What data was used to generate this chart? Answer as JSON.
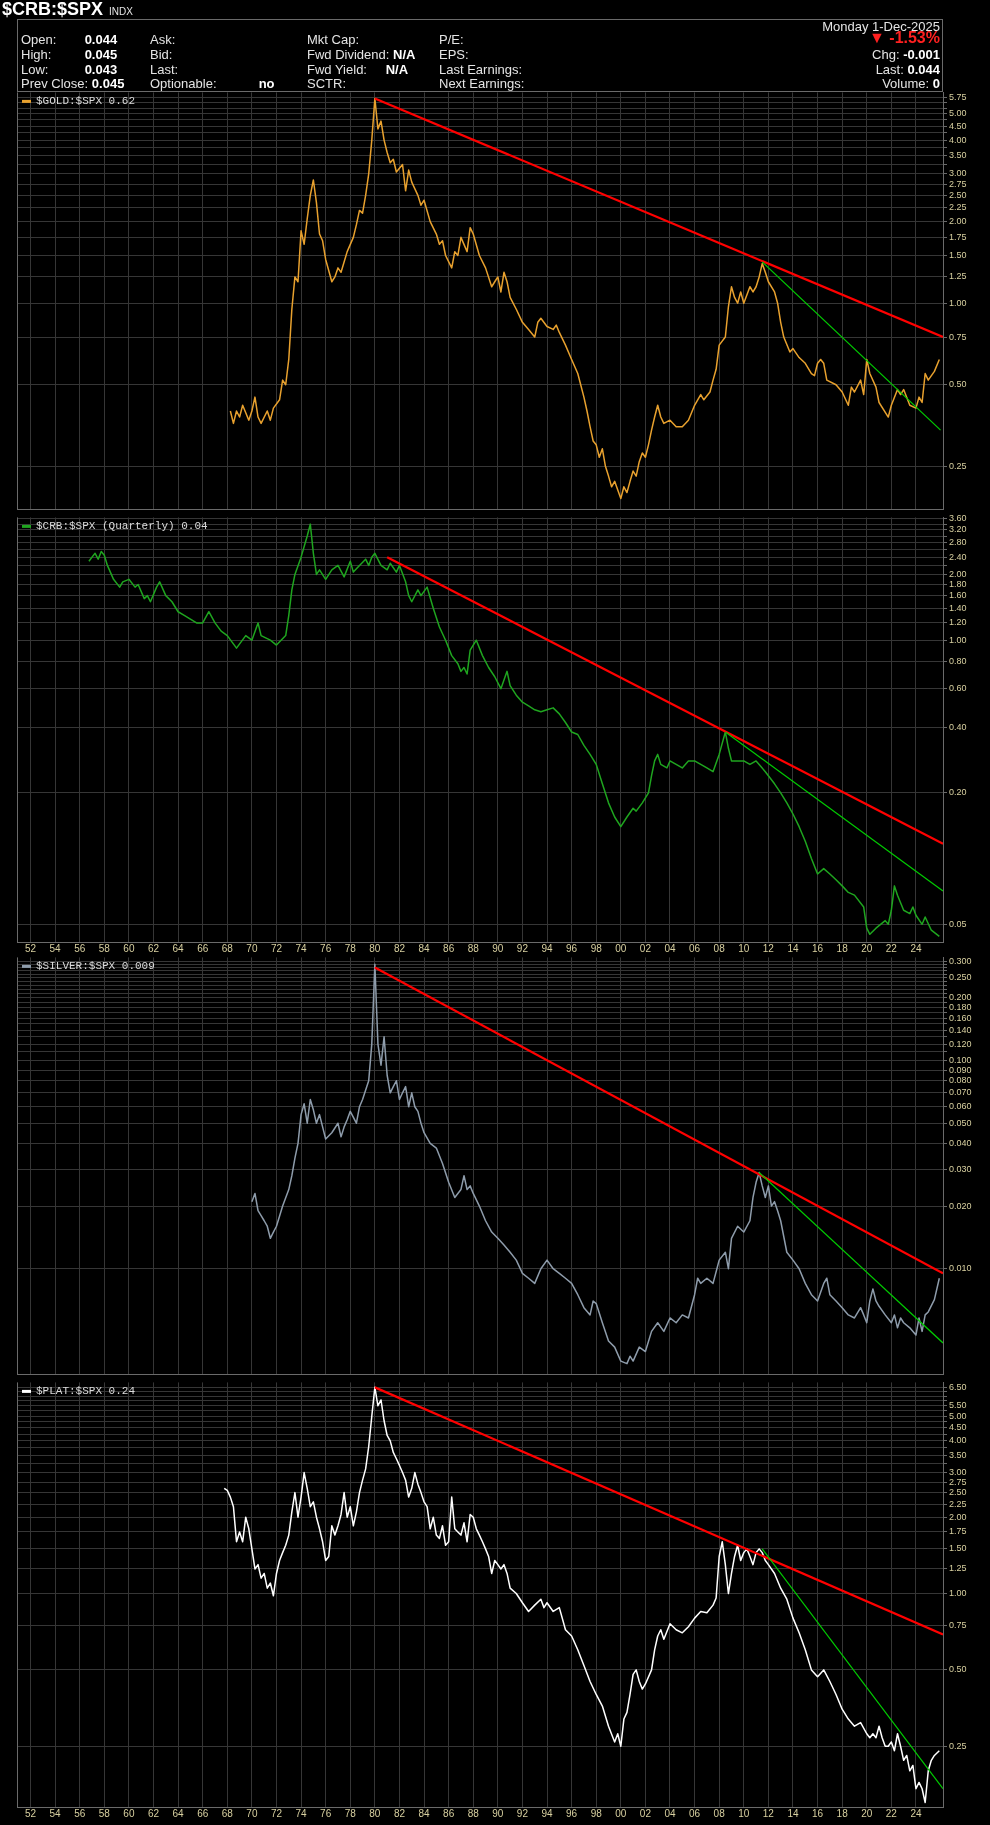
{
  "chart_data": [
    {
      "type": "other",
      "title": "$CRB:$SPX",
      "subtitle": "INDX",
      "annotations": [
        "Monday 1-Dec-2025",
        "Open: 0.044",
        "High: 0.045",
        "Low: 0.043",
        "Prev Close: 0.045",
        "Ask:",
        "Bid:",
        "Last:",
        "Optionable: no",
        "Mkt Cap:",
        "Fwd Dividend: N/A",
        "Fwd Yield: N/A",
        "SCTR:",
        "P/E:",
        "EPS:",
        "Last Earnings:",
        "Next Earnings:",
        "▼ -1.53%",
        "Chg: -0.001",
        "Last: 0.044",
        "Volume: 0"
      ]
    },
    {
      "type": "line",
      "log": "y",
      "grid": true,
      "legend": "top left",
      "tick_labels": "y",
      "x": [
        1968.25,
        1968.5,
        1968.75,
        1969,
        1969.25,
        1969.75,
        1970,
        1970.25,
        1970.5,
        1970.75,
        1971.25,
        1971.5,
        1971.75,
        1972.25,
        1972.5,
        1972.75,
        1973,
        1973.25,
        1973.5,
        1973.75,
        1974,
        1974.25,
        1974.5,
        1974.75,
        1975,
        1975.25,
        1975.5,
        1975.75,
        1976,
        1976.5,
        1976.75,
        1977,
        1977.25,
        1977.75,
        1978.25,
        1978.5,
        1978.75,
        1979,
        1979.25,
        1979.5,
        1979.75,
        1980,
        1980.25,
        1980.5,
        1980.75,
        1981,
        1981.25,
        1981.5,
        1981.75,
        1982.25,
        1982.5,
        1982.75,
        1983,
        1983.5,
        1983.75,
        1984,
        1984.5,
        1985,
        1985.25,
        1985.5,
        1985.75,
        1986.25,
        1986.5,
        1986.75,
        1987,
        1987.5,
        1987.75,
        1988,
        1988.5,
        1989,
        1989.5,
        1989.75,
        1990,
        1990.25,
        1990.5,
        1990.75,
        1991,
        1991.5,
        1992,
        1992.5,
        1993,
        1993.25,
        1993.5,
        1994,
        1994.5,
        1994.75,
        1995,
        1995.5,
        1996,
        1996.5,
        1997,
        1997.25,
        1997.5,
        1997.75,
        1998,
        1998.25,
        1998.5,
        1998.75,
        1999,
        1999.25,
        1999.5,
        2000,
        2000.25,
        2000.5,
        2000.75,
        2001,
        2001.25,
        2001.5,
        2001.75,
        2002,
        2002.25,
        2002.5,
        2002.75,
        2003,
        2003.25,
        2003.5,
        2004,
        2004.5,
        2005,
        2005.5,
        2006,
        2006.5,
        2006.75,
        2007.25,
        2007.5,
        2007.75,
        2008,
        2008.5,
        2008.75,
        2009,
        2009.25,
        2009.5,
        2009.75,
        2010,
        2010.5,
        2010.75,
        2011,
        2011.25,
        2011.5,
        2011.75,
        2012,
        2012.5,
        2012.75,
        2013,
        2013.25,
        2013.75,
        2014,
        2014.5,
        2015,
        2015.5,
        2015.75,
        2016,
        2016.25,
        2016.5,
        2016.75,
        2017.5,
        2018,
        2018.5,
        2018.75,
        2019,
        2019.5,
        2019.75,
        2020,
        2020.25,
        2020.75,
        2021,
        2021.75,
        2022,
        2022.5,
        2022.75,
        2023,
        2023.5,
        2024,
        2024.25,
        2024.5,
        2024.75,
        2025,
        2025.5,
        2025.9
      ],
      "series": [
        {
          "name": "$GOLD:$SPX 0.62",
          "color": "#e8a12e",
          "values": [
            0.4,
            0.36,
            0.4,
            0.38,
            0.42,
            0.37,
            0.4,
            0.45,
            0.38,
            0.36,
            0.4,
            0.37,
            0.41,
            0.44,
            0.52,
            0.5,
            0.62,
            0.95,
            1.25,
            1.2,
            1.85,
            1.65,
            2.05,
            2.5,
            2.85,
            2.35,
            1.8,
            1.7,
            1.45,
            1.2,
            1.25,
            1.35,
            1.3,
            1.55,
            1.75,
            1.95,
            2.2,
            2.15,
            2.5,
            3.0,
            4.0,
            5.7,
            4.4,
            4.7,
            4.0,
            3.6,
            3.3,
            3.4,
            3.05,
            3.25,
            2.6,
            3.1,
            2.8,
            2.5,
            2.3,
            2.4,
            2.0,
            1.8,
            1.65,
            1.7,
            1.5,
            1.35,
            1.55,
            1.5,
            1.75,
            1.55,
            1.9,
            1.8,
            1.5,
            1.35,
            1.15,
            1.2,
            1.25,
            1.1,
            1.3,
            1.2,
            1.05,
            0.95,
            0.85,
            0.8,
            0.75,
            0.85,
            0.88,
            0.82,
            0.8,
            0.83,
            0.78,
            0.7,
            0.62,
            0.55,
            0.45,
            0.4,
            0.35,
            0.31,
            0.3,
            0.27,
            0.29,
            0.25,
            0.23,
            0.21,
            0.22,
            0.19,
            0.21,
            0.2,
            0.22,
            0.24,
            0.23,
            0.26,
            0.28,
            0.27,
            0.3,
            0.34,
            0.38,
            0.42,
            0.38,
            0.36,
            0.37,
            0.35,
            0.35,
            0.37,
            0.42,
            0.46,
            0.44,
            0.47,
            0.52,
            0.57,
            0.7,
            0.75,
            0.97,
            1.15,
            1.05,
            1.0,
            1.1,
            1.0,
            1.15,
            1.1,
            1.15,
            1.25,
            1.4,
            1.3,
            1.2,
            1.1,
            1.0,
            0.85,
            0.75,
            0.66,
            0.68,
            0.63,
            0.6,
            0.55,
            0.54,
            0.6,
            0.62,
            0.6,
            0.52,
            0.5,
            0.47,
            0.42,
            0.49,
            0.47,
            0.52,
            0.46,
            0.62,
            0.55,
            0.49,
            0.43,
            0.38,
            0.42,
            0.48,
            0.46,
            0.48,
            0.42,
            0.41,
            0.45,
            0.43,
            0.55,
            0.52,
            0.56,
            0.62
          ]
        },
        {
          "color": "#ff0000",
          "x": [
            1980,
            2026.2
          ],
          "values": [
            5.7,
            0.75
          ]
        },
        {
          "color": "#00cc00",
          "x": [
            2011.5,
            2026.0
          ],
          "values": [
            1.42,
            0.34
          ]
        }
      ],
      "xlim": [
        1950.9,
        2026.2
      ],
      "xticks": [
        1952,
        1954,
        1956,
        1958,
        1960,
        1962,
        1964,
        1966,
        1968,
        1970,
        1972,
        1974,
        1976,
        1978,
        1980,
        1982,
        1984,
        1986,
        1988,
        1990,
        1992,
        1994,
        1996,
        1998,
        2000,
        2002,
        2004,
        2006,
        2008,
        2010,
        2012,
        2014,
        2016,
        2018,
        2020,
        2022,
        2024
      ],
      "ylim": [
        0.173,
        6.0
      ],
      "yticks": [
        0.25,
        {
          "value": 0.5,
          "label": "0.50"
        },
        0.75,
        {
          "value": 1,
          "label": "1.00"
        },
        1.25,
        {
          "value": 1.5,
          "label": "1.50"
        },
        1.75,
        {
          "value": 2,
          "label": "2.00"
        },
        2.25,
        {
          "value": 2.5,
          "label": "2.50"
        },
        2.75,
        {
          "value": 3,
          "label": "3.00"
        },
        {
          "value": 3.25,
          "label": null
        },
        {
          "value": 3.5,
          "label": "3.50"
        },
        {
          "value": 3.75,
          "label": null
        },
        {
          "value": 4,
          "label": "4.00"
        },
        {
          "value": 4.25,
          "label": null
        },
        {
          "value": 4.5,
          "label": "4.50"
        },
        {
          "value": 4.75,
          "label": null
        },
        {
          "value": 5,
          "label": "5.00"
        },
        {
          "value": 5.25,
          "label": null
        },
        {
          "value": 5.5,
          "label": null
        },
        5.75
      ]
    },
    {
      "type": "line",
      "log": "y",
      "grid": true,
      "legend": "top left",
      "x": [
        1956.75,
        1957,
        1957.25,
        1957.5,
        1957.75,
        1958,
        1958.25,
        1958.75,
        1959.25,
        1959.5,
        1960,
        1960.5,
        1960.75,
        1961.25,
        1961.5,
        1961.75,
        1962.25,
        1962.5,
        1963,
        1963.5,
        1964,
        1964.5,
        1965,
        1965.5,
        1966,
        1966.5,
        1967,
        1967.5,
        1968,
        1968.75,
        1969.5,
        1970,
        1970.5,
        1970.75,
        1971.5,
        1972,
        1972.75,
        1973,
        1973.25,
        1973.5,
        1974,
        1974.5,
        1974.75,
        1975,
        1975.25,
        1975.5,
        1976,
        1976.5,
        1977,
        1977.5,
        1978,
        1978.25,
        1978.75,
        1979.25,
        1979.5,
        1979.75,
        1980,
        1980.5,
        1981,
        1981.25,
        1981.75,
        1982,
        1982.5,
        1982.75,
        1983,
        1983.5,
        1983.75,
        1984.25,
        1984.75,
        1985.25,
        1985.75,
        1986.25,
        1986.75,
        1987,
        1987.25,
        1987.5,
        1987.75,
        1988.25,
        1988.75,
        1989.25,
        1989.75,
        1990.25,
        1990.75,
        1991,
        1991.5,
        1992,
        1992.5,
        1993,
        1993.5,
        1994,
        1994.5,
        1995,
        1995.5,
        1996,
        1996.5,
        1997,
        1997.5,
        1998,
        1998.5,
        1999,
        1999.5,
        2000,
        2000.5,
        2001,
        2001.25,
        2001.75,
        2002.25,
        2002.5,
        2002.75,
        2003,
        2003.25,
        2003.75,
        2004,
        2004.5,
        2005,
        2005.5,
        2006,
        2006.5,
        2007,
        2007.5,
        2008,
        2008.5,
        2008.75,
        2009,
        2009.5,
        2010,
        2010.5,
        2011,
        2011.75,
        2012.5,
        2013,
        2013.5,
        2014,
        2014.5,
        2015,
        2015.5,
        2016,
        2016.5,
        2017,
        2017.5,
        2018,
        2018.5,
        2019,
        2019.75,
        2020,
        2020.25,
        2020.75,
        2021.5,
        2021.75,
        2022,
        2022.25,
        2022.5,
        2023,
        2023.5,
        2023.75,
        2024,
        2024.5,
        2024.75,
        2025.25,
        2025.9
      ],
      "series": [
        {
          "name": "$CRB:$SPX (Quarterly) 0.04",
          "color": "#1fa51f",
          "values": [
            2.3,
            2.4,
            2.5,
            2.35,
            2.55,
            2.45,
            2.2,
            1.9,
            1.75,
            1.85,
            1.9,
            1.75,
            1.8,
            1.55,
            1.6,
            1.5,
            1.75,
            1.85,
            1.6,
            1.5,
            1.35,
            1.3,
            1.25,
            1.2,
            1.2,
            1.35,
            1.2,
            1.1,
            1.05,
            0.92,
            1.05,
            1.0,
            1.2,
            1.05,
            1.0,
            0.95,
            1.05,
            1.3,
            1.7,
            2.0,
            2.4,
            3.0,
            3.4,
            2.5,
            2.0,
            2.1,
            1.9,
            2.1,
            2.2,
            1.95,
            2.3,
            2.05,
            2.2,
            2.35,
            2.2,
            2.4,
            2.5,
            2.2,
            2.1,
            2.25,
            2.05,
            2.2,
            1.85,
            1.6,
            1.5,
            1.7,
            1.6,
            1.75,
            1.4,
            1.15,
            1.0,
            0.85,
            0.78,
            0.72,
            0.75,
            0.7,
            0.9,
            1.0,
            0.85,
            0.75,
            0.68,
            0.6,
            0.72,
            0.62,
            0.56,
            0.52,
            0.5,
            0.48,
            0.47,
            0.48,
            0.49,
            0.46,
            0.42,
            0.38,
            0.37,
            0.33,
            0.3,
            0.27,
            0.22,
            0.18,
            0.155,
            0.14,
            0.155,
            0.17,
            0.165,
            0.18,
            0.2,
            0.24,
            0.28,
            0.3,
            0.27,
            0.26,
            0.28,
            0.27,
            0.26,
            0.28,
            0.28,
            0.27,
            0.26,
            0.25,
            0.3,
            0.38,
            0.32,
            0.28,
            0.28,
            0.28,
            0.27,
            0.28,
            0.25,
            0.22,
            0.2,
            0.18,
            0.16,
            0.14,
            0.12,
            0.1,
            0.085,
            0.09,
            0.085,
            0.08,
            0.075,
            0.07,
            0.068,
            0.06,
            0.048,
            0.045,
            0.048,
            0.052,
            0.05,
            0.058,
            0.075,
            0.068,
            0.058,
            0.056,
            0.06,
            0.055,
            0.05,
            0.054,
            0.047,
            0.044
          ]
        },
        {
          "color": "#ff0000",
          "x": [
            1981,
            2026.2
          ],
          "values": [
            2.4,
            0.117
          ]
        },
        {
          "color": "#00cc00",
          "x": [
            2008.5,
            2026.2
          ],
          "values": [
            0.38,
            0.071
          ]
        }
      ],
      "xlim": [
        1950.9,
        2026.2
      ],
      "xticks": [
        {
          "value": 1952,
          "label": "52"
        },
        {
          "value": 1954,
          "label": "54"
        },
        {
          "value": 1956,
          "label": "56"
        },
        {
          "value": 1958,
          "label": "58"
        },
        {
          "value": 1960,
          "label": "60"
        },
        {
          "value": 1962,
          "label": "62"
        },
        {
          "value": 1964,
          "label": "64"
        },
        {
          "value": 1966,
          "label": "66"
        },
        {
          "value": 1968,
          "label": "68"
        },
        {
          "value": 1970,
          "label": "70"
        },
        {
          "value": 1972,
          "label": "72"
        },
        {
          "value": 1974,
          "label": "74"
        },
        {
          "value": 1976,
          "label": "76"
        },
        {
          "value": 1978,
          "label": "78"
        },
        {
          "value": 1980,
          "label": "80"
        },
        {
          "value": 1982,
          "label": "82"
        },
        {
          "value": 1984,
          "label": "84"
        },
        {
          "value": 1986,
          "label": "86"
        },
        {
          "value": 1988,
          "label": "88"
        },
        {
          "value": 1990,
          "label": "90"
        },
        {
          "value": 1992,
          "label": "92"
        },
        {
          "value": 1994,
          "label": "94"
        },
        {
          "value": 1996,
          "label": "96"
        },
        {
          "value": 1998,
          "label": "98"
        },
        {
          "value": 2000,
          "label": "00"
        },
        {
          "value": 2002,
          "label": "02"
        },
        {
          "value": 2004,
          "label": "04"
        },
        {
          "value": 2006,
          "label": "06"
        },
        {
          "value": 2008,
          "label": "08"
        },
        {
          "value": 2010,
          "label": "10"
        },
        {
          "value": 2012,
          "label": "12"
        },
        {
          "value": 2014,
          "label": "14"
        },
        {
          "value": 2016,
          "label": "16"
        },
        {
          "value": 2018,
          "label": "18"
        },
        {
          "value": 2020,
          "label": "20"
        },
        {
          "value": 2022,
          "label": "22"
        },
        {
          "value": 2024,
          "label": "24"
        }
      ],
      "ylim": [
        0.0415,
        3.65
      ],
      "yticks": [
        0.05,
        {
          "value": 0.2,
          "label": "0.20"
        },
        {
          "value": 0.4,
          "label": "0.40"
        },
        {
          "value": 0.6,
          "label": "0.60"
        },
        {
          "value": 0.8,
          "label": "0.80"
        },
        {
          "value": 1,
          "label": "1.00"
        },
        {
          "value": 1.2,
          "label": "1.20"
        },
        {
          "value": 1.4,
          "label": "1.40"
        },
        {
          "value": 1.6,
          "label": "1.60"
        },
        {
          "value": 1.8,
          "label": "1.80"
        },
        {
          "value": 2,
          "label": "2.00"
        },
        {
          "value": 2.2,
          "label": null
        },
        {
          "value": 2.4,
          "label": "2.40"
        },
        {
          "value": 2.6,
          "label": null
        },
        {
          "value": 2.8,
          "label": "2.80"
        },
        {
          "value": 3,
          "label": null
        },
        {
          "value": 3.2,
          "label": "3.20"
        },
        {
          "value": 3.4,
          "label": null
        },
        {
          "value": 3.6,
          "label": "3.60"
        }
      ]
    },
    {
      "type": "line",
      "log": "y",
      "grid": true,
      "legend": "top left",
      "tick_labels": "y",
      "x": [
        1970,
        1970.25,
        1970.5,
        1970.75,
        1971,
        1971.25,
        1971.5,
        1971.75,
        1972,
        1972.5,
        1973,
        1973.25,
        1973.5,
        1973.75,
        1974,
        1974.25,
        1974.5,
        1974.75,
        1975,
        1975.25,
        1975.5,
        1975.75,
        1976,
        1976.5,
        1977,
        1977.25,
        1977.5,
        1977.75,
        1978,
        1978.5,
        1978.75,
        1979,
        1979.5,
        1979.75,
        1980,
        1980.25,
        1980.5,
        1980.75,
        1981,
        1981.25,
        1981.5,
        1981.75,
        1982,
        1982.25,
        1982.5,
        1982.75,
        1983,
        1983.25,
        1983.5,
        1983.75,
        1984,
        1984.5,
        1985,
        1985.5,
        1986,
        1986.5,
        1987,
        1987.25,
        1987.5,
        1987.75,
        1988,
        1988.5,
        1989,
        1989.5,
        1990,
        1990.5,
        1991,
        1991.5,
        1992,
        1992.5,
        1993,
        1993.5,
        1994,
        1994.5,
        1995,
        1995.5,
        1996,
        1996.5,
        1997,
        1997.5,
        1997.75,
        1998,
        1998.5,
        1999,
        1999.5,
        2000,
        2000.5,
        2000.75,
        2001,
        2001.5,
        2002,
        2002.5,
        2003,
        2003.5,
        2004,
        2004.5,
        2005,
        2005.5,
        2006,
        2006.25,
        2006.5,
        2007,
        2007.5,
        2008,
        2008.5,
        2008.75,
        2009,
        2009.5,
        2010,
        2010.5,
        2010.75,
        2011,
        2011.25,
        2011.5,
        2011.75,
        2012,
        2012.25,
        2012.5,
        2012.75,
        2013,
        2013.5,
        2014,
        2014.5,
        2015,
        2015.5,
        2016,
        2016.5,
        2016.75,
        2017,
        2017.5,
        2018,
        2018.5,
        2019,
        2019.5,
        2019.75,
        2020,
        2020.25,
        2020.5,
        2020.75,
        2021,
        2021.5,
        2022,
        2022.25,
        2022.5,
        2022.75,
        2023,
        2023.5,
        2024,
        2024.25,
        2024.5,
        2024.75,
        2025,
        2025.5,
        2025.9
      ],
      "series": [
        {
          "name": "$SILVER:$SPX 0.009",
          "color": "#8e9cab",
          "values": [
            0.021,
            0.023,
            0.019,
            0.018,
            0.017,
            0.016,
            0.014,
            0.015,
            0.016,
            0.02,
            0.024,
            0.028,
            0.034,
            0.04,
            0.055,
            0.062,
            0.05,
            0.065,
            0.058,
            0.05,
            0.055,
            0.048,
            0.042,
            0.045,
            0.05,
            0.043,
            0.048,
            0.052,
            0.057,
            0.05,
            0.06,
            0.065,
            0.08,
            0.12,
            0.29,
            0.12,
            0.095,
            0.13,
            0.085,
            0.07,
            0.075,
            0.08,
            0.065,
            0.07,
            0.075,
            0.06,
            0.07,
            0.06,
            0.057,
            0.05,
            0.045,
            0.04,
            0.038,
            0.032,
            0.026,
            0.022,
            0.024,
            0.028,
            0.024,
            0.025,
            0.023,
            0.02,
            0.017,
            0.015,
            0.014,
            0.013,
            0.012,
            0.011,
            0.0095,
            0.009,
            0.0085,
            0.01,
            0.011,
            0.01,
            0.0095,
            0.009,
            0.0085,
            0.0075,
            0.0065,
            0.006,
            0.007,
            0.0068,
            0.0055,
            0.0045,
            0.0042,
            0.0036,
            0.0035,
            0.0038,
            0.0036,
            0.0042,
            0.004,
            0.005,
            0.0055,
            0.005,
            0.0058,
            0.0055,
            0.006,
            0.0058,
            0.0075,
            0.009,
            0.0085,
            0.009,
            0.0085,
            0.011,
            0.012,
            0.01,
            0.014,
            0.016,
            0.015,
            0.017,
            0.022,
            0.026,
            0.029,
            0.025,
            0.022,
            0.025,
            0.02,
            0.021,
            0.019,
            0.017,
            0.012,
            0.011,
            0.01,
            0.0085,
            0.0075,
            0.007,
            0.0085,
            0.009,
            0.0075,
            0.007,
            0.0065,
            0.006,
            0.0058,
            0.0065,
            0.006,
            0.0055,
            0.007,
            0.008,
            0.007,
            0.0066,
            0.006,
            0.0055,
            0.006,
            0.0052,
            0.0058,
            0.0055,
            0.0052,
            0.0048,
            0.0058,
            0.005,
            0.006,
            0.0062,
            0.0071,
            0.009
          ]
        },
        {
          "color": "#ff0000",
          "x": [
            1980,
            2026.2
          ],
          "values": [
            0.28,
            0.0095
          ]
        },
        {
          "color": "#00cc00",
          "x": [
            2011.25,
            2026.2
          ],
          "values": [
            0.029,
            0.0044
          ]
        }
      ],
      "xlim": [
        1950.9,
        2026.2
      ],
      "xticks": [
        1952,
        1954,
        1956,
        1958,
        1960,
        1962,
        1964,
        1966,
        1968,
        1970,
        1972,
        1974,
        1976,
        1978,
        1980,
        1982,
        1984,
        1986,
        1988,
        1990,
        1992,
        1994,
        1996,
        1998,
        2000,
        2002,
        2004,
        2006,
        2008,
        2010,
        2012,
        2014,
        2016,
        2018,
        2020,
        2022,
        2024
      ],
      "ylim": [
        0.0031,
        0.313
      ],
      "yticks": [
        {
          "value": 0.01,
          "label": "0.010"
        },
        {
          "value": 0.02,
          "label": "0.020"
        },
        {
          "value": 0.03,
          "label": "0.030"
        },
        {
          "value": 0.04,
          "label": "0.040"
        },
        {
          "value": 0.05,
          "label": "0.050"
        },
        {
          "value": 0.06,
          "label": "0.060"
        },
        {
          "value": 0.07,
          "label": "0.070"
        },
        {
          "value": 0.08,
          "label": "0.080"
        },
        {
          "value": 0.09,
          "label": "0.090"
        },
        {
          "value": 0.1,
          "label": "0.100"
        },
        {
          "value": 0.11,
          "label": null
        },
        {
          "value": 0.12,
          "label": "0.120"
        },
        {
          "value": 0.13,
          "label": null
        },
        {
          "value": 0.14,
          "label": "0.140"
        },
        {
          "value": 0.15,
          "label": null
        },
        {
          "value": 0.16,
          "label": "0.160"
        },
        {
          "value": 0.17,
          "label": null
        },
        {
          "value": 0.18,
          "label": "0.180"
        },
        {
          "value": 0.19,
          "label": null
        },
        {
          "value": 0.2,
          "label": "0.200"
        },
        {
          "value": 0.21,
          "label": null
        },
        {
          "value": 0.22,
          "label": null
        },
        {
          "value": 0.23,
          "label": null
        },
        {
          "value": 0.24,
          "label": null
        },
        {
          "value": 0.25,
          "label": "0.250"
        },
        {
          "value": 0.26,
          "label": null
        },
        {
          "value": 0.27,
          "label": null
        },
        {
          "value": 0.28,
          "label": null
        },
        {
          "value": 0.29,
          "label": null
        },
        {
          "value": 0.3,
          "label": "0.300"
        }
      ]
    },
    {
      "type": "line",
      "log": "y",
      "grid": true,
      "legend": "top left",
      "x": [
        1967.75,
        1968,
        1968.25,
        1968.5,
        1968.75,
        1969,
        1969.25,
        1969.5,
        1969.75,
        1970,
        1970.25,
        1970.5,
        1970.75,
        1971,
        1971.25,
        1971.5,
        1971.75,
        1972,
        1972.25,
        1972.5,
        1972.75,
        1973,
        1973.25,
        1973.5,
        1973.75,
        1974,
        1974.25,
        1974.5,
        1974.75,
        1975,
        1975.25,
        1975.5,
        1975.75,
        1976,
        1976.25,
        1976.5,
        1976.75,
        1977,
        1977.25,
        1977.5,
        1977.75,
        1978,
        1978.25,
        1978.5,
        1978.75,
        1979,
        1979.25,
        1979.5,
        1979.75,
        1980,
        1980.25,
        1980.5,
        1980.75,
        1981,
        1981.25,
        1981.5,
        1981.75,
        1982,
        1982.25,
        1982.5,
        1982.75,
        1983,
        1983.25,
        1983.5,
        1983.75,
        1984,
        1984.25,
        1984.5,
        1984.75,
        1985,
        1985.25,
        1985.5,
        1985.75,
        1986,
        1986.25,
        1986.5,
        1986.75,
        1987,
        1987.25,
        1987.5,
        1987.75,
        1988,
        1988.25,
        1988.5,
        1988.75,
        1989,
        1989.25,
        1989.5,
        1989.75,
        1990,
        1990.25,
        1990.5,
        1990.75,
        1991,
        1991.5,
        1992,
        1992.5,
        1993,
        1993.5,
        1993.75,
        1994,
        1994.5,
        1995,
        1995.5,
        1996,
        1996.5,
        1997,
        1997.5,
        1998,
        1998.5,
        1999,
        1999.5,
        1999.75,
        2000,
        2000.25,
        2000.5,
        2000.75,
        2001,
        2001.25,
        2001.5,
        2001.75,
        2002,
        2002.5,
        2002.75,
        2003,
        2003.25,
        2003.5,
        2004,
        2004.5,
        2005,
        2005.5,
        2006,
        2006.5,
        2007,
        2007.5,
        2007.75,
        2008,
        2008.25,
        2008.5,
        2008.75,
        2009,
        2009.25,
        2009.5,
        2009.75,
        2010,
        2010.25,
        2010.5,
        2010.75,
        2011,
        2011.25,
        2011.5,
        2011.75,
        2012,
        2012.5,
        2013,
        2013.5,
        2014,
        2014.5,
        2015,
        2015.5,
        2016,
        2016.5,
        2017,
        2017.5,
        2018,
        2018.5,
        2019,
        2019.5,
        2020,
        2020.25,
        2020.5,
        2020.75,
        2021,
        2021.25,
        2021.5,
        2021.75,
        2022,
        2022.25,
        2022.5,
        2022.75,
        2023,
        2023.25,
        2023.5,
        2023.75,
        2024,
        2024.25,
        2024.5,
        2024.75,
        2025,
        2025.25,
        2025.5,
        2025.9
      ],
      "series": [
        {
          "name": "$PLAT:$SPX 0.24",
          "color": "#ffffff",
          "values": [
            2.6,
            2.55,
            2.4,
            2.2,
            1.6,
            1.75,
            1.6,
            2.0,
            1.8,
            1.5,
            1.25,
            1.3,
            1.15,
            1.2,
            1.05,
            1.1,
            0.98,
            1.2,
            1.35,
            1.45,
            1.55,
            1.7,
            2.1,
            2.5,
            2.0,
            2.4,
            3.0,
            2.6,
            2.2,
            2.3,
            2.0,
            1.8,
            1.6,
            1.35,
            1.4,
            1.85,
            1.7,
            1.85,
            2.05,
            2.5,
            2.0,
            2.2,
            1.85,
            2.1,
            2.5,
            2.8,
            3.1,
            3.8,
            5.0,
            6.5,
            5.5,
            5.8,
            4.8,
            4.2,
            4.0,
            3.6,
            3.4,
            3.2,
            3.0,
            2.8,
            2.4,
            2.6,
            3.0,
            2.7,
            2.5,
            2.3,
            2.2,
            1.8,
            2.0,
            1.7,
            1.65,
            1.85,
            1.55,
            1.6,
            2.4,
            1.8,
            1.75,
            1.7,
            1.9,
            1.6,
            2.05,
            2.0,
            1.8,
            1.7,
            1.6,
            1.5,
            1.4,
            1.2,
            1.35,
            1.3,
            1.25,
            1.3,
            1.2,
            1.05,
            1.0,
            0.92,
            0.85,
            0.9,
            0.95,
            0.88,
            0.92,
            0.85,
            0.88,
            0.72,
            0.68,
            0.6,
            0.52,
            0.45,
            0.4,
            0.36,
            0.3,
            0.26,
            0.28,
            0.25,
            0.32,
            0.34,
            0.4,
            0.48,
            0.5,
            0.45,
            0.42,
            0.44,
            0.5,
            0.6,
            0.68,
            0.72,
            0.66,
            0.76,
            0.72,
            0.7,
            0.74,
            0.8,
            0.85,
            0.84,
            0.9,
            0.96,
            1.4,
            1.6,
            1.3,
            1.0,
            1.2,
            1.4,
            1.55,
            1.35,
            1.45,
            1.5,
            1.4,
            1.3,
            1.45,
            1.5,
            1.45,
            1.35,
            1.3,
            1.2,
            1.05,
            0.95,
            0.8,
            0.7,
            0.6,
            0.5,
            0.47,
            0.5,
            0.45,
            0.4,
            0.35,
            0.32,
            0.3,
            0.31,
            0.28,
            0.27,
            0.28,
            0.27,
            0.3,
            0.27,
            0.25,
            0.25,
            0.26,
            0.24,
            0.28,
            0.25,
            0.22,
            0.23,
            0.2,
            0.21,
            0.17,
            0.18,
            0.17,
            0.15,
            0.2,
            0.22,
            0.23,
            0.24
          ]
        },
        {
          "color": "#ff0000",
          "x": [
            1980,
            2026.2
          ],
          "values": [
            6.5,
            0.69
          ]
        },
        {
          "color": "#00cc00",
          "x": [
            2011.5,
            2026.2
          ],
          "values": [
            1.5,
            0.17
          ]
        }
      ],
      "xlim": [
        1950.9,
        2026.2
      ],
      "xticks": [
        {
          "value": 1952,
          "label": "52"
        },
        {
          "value": 1954,
          "label": "54"
        },
        {
          "value": 1956,
          "label": "56"
        },
        {
          "value": 1958,
          "label": "58"
        },
        {
          "value": 1960,
          "label": "60"
        },
        {
          "value": 1962,
          "label": "62"
        },
        {
          "value": 1964,
          "label": "64"
        },
        {
          "value": 1966,
          "label": "66"
        },
        {
          "value": 1968,
          "label": "68"
        },
        {
          "value": 1970,
          "label": "70"
        },
        {
          "value": 1972,
          "label": "72"
        },
        {
          "value": 1974,
          "label": "74"
        },
        {
          "value": 1976,
          "label": "76"
        },
        {
          "value": 1978,
          "label": "78"
        },
        {
          "value": 1980,
          "label": "80"
        },
        {
          "value": 1982,
          "label": "82"
        },
        {
          "value": 1984,
          "label": "84"
        },
        {
          "value": 1986,
          "label": "86"
        },
        {
          "value": 1988,
          "label": "88"
        },
        {
          "value": 1990,
          "label": "90"
        },
        {
          "value": 1992,
          "label": "92"
        },
        {
          "value": 1994,
          "label": "94"
        },
        {
          "value": 1996,
          "label": "96"
        },
        {
          "value": 1998,
          "label": "98"
        },
        {
          "value": 2000,
          "label": "00"
        },
        {
          "value": 2002,
          "label": "02"
        },
        {
          "value": 2004,
          "label": "04"
        },
        {
          "value": 2006,
          "label": "06"
        },
        {
          "value": 2008,
          "label": "08"
        },
        {
          "value": 2010,
          "label": "10"
        },
        {
          "value": 2012,
          "label": "12"
        },
        {
          "value": 2014,
          "label": "14"
        },
        {
          "value": 2016,
          "label": "16"
        },
        {
          "value": 2018,
          "label": "18"
        },
        {
          "value": 2020,
          "label": "20"
        },
        {
          "value": 2022,
          "label": "22"
        },
        {
          "value": 2024,
          "label": "24"
        }
      ],
      "ylim": [
        0.144,
        6.8
      ],
      "yticks": [
        0.25,
        {
          "value": 0.5,
          "label": "0.50"
        },
        0.75,
        {
          "value": 1,
          "label": "1.00"
        },
        1.25,
        {
          "value": 1.5,
          "label": "1.50"
        },
        1.75,
        {
          "value": 2,
          "label": "2.00"
        },
        2.25,
        {
          "value": 2.5,
          "label": "2.50"
        },
        2.75,
        {
          "value": 3,
          "label": "3.00"
        },
        {
          "value": 3.25,
          "label": null
        },
        {
          "value": 3.5,
          "label": "3.50"
        },
        {
          "value": 3.75,
          "label": null
        },
        {
          "value": 4,
          "label": "4.00"
        },
        {
          "value": 4.25,
          "label": null
        },
        {
          "value": 4.5,
          "label": "4.50"
        },
        {
          "value": 4.75,
          "label": null
        },
        {
          "value": 5,
          "label": "5.00"
        },
        {
          "value": 5.25,
          "label": null
        },
        {
          "value": 5.5,
          "label": "5.50"
        },
        {
          "value": 5.75,
          "label": null
        },
        {
          "value": 6,
          "label": null
        },
        {
          "value": 6.25,
          "label": null
        },
        {
          "value": 6.5,
          "label": "6.50"
        }
      ]
    }
  ]
}
